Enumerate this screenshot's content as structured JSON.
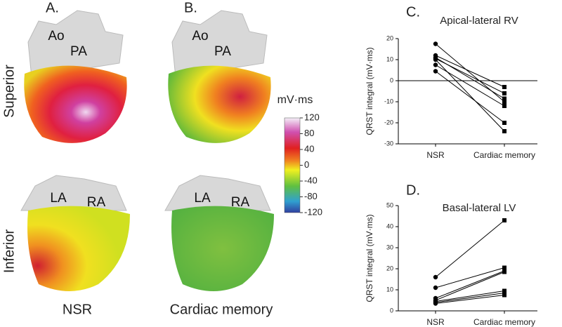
{
  "panel_labels": [
    "A.",
    "B.",
    "C.",
    "D."
  ],
  "view_labels": [
    "Superior",
    "Inferior"
  ],
  "column_labels": [
    "NSR",
    "Cardiac memory"
  ],
  "heart_labels": {
    "superior": [
      "Ao",
      "PA"
    ],
    "inferior": [
      "LA",
      "RA"
    ]
  },
  "colorbar": {
    "title": "mV·ms",
    "range": [
      -120,
      120
    ],
    "ticks": [
      120,
      80,
      40,
      0,
      -40,
      -80,
      -120
    ]
  },
  "chart_data": [
    {
      "type": "line",
      "title": "Apical-lateral RV",
      "y_label": "QRST integral (mV·ms)",
      "categories": [
        "NSR",
        "Cardiac memory"
      ],
      "ylim": [
        -30,
        20
      ],
      "yticks": [
        -30,
        -20,
        -10,
        0,
        10,
        20
      ],
      "zero_line": true,
      "series": [
        {
          "color": "#000000",
          "values": [
            17.5,
            -10
          ]
        },
        {
          "color": "#000000",
          "values": [
            12,
            -3
          ]
        },
        {
          "color": "#000000",
          "values": [
            11,
            -8.5
          ]
        },
        {
          "color": "#000000",
          "values": [
            10.5,
            -6
          ]
        },
        {
          "color": "#000000",
          "values": [
            10,
            -24
          ]
        },
        {
          "color": "#000000",
          "values": [
            7.5,
            -12
          ]
        },
        {
          "color": "#000000",
          "values": [
            4.5,
            -20
          ]
        }
      ]
    },
    {
      "type": "line",
      "title": "Basal-lateral LV",
      "y_label": "QRST integral (mV·ms)",
      "categories": [
        "NSR",
        "Cardiac memory"
      ],
      "ylim": [
        0,
        50
      ],
      "yticks": [
        0,
        10,
        20,
        30,
        40,
        50
      ],
      "zero_line": false,
      "series": [
        {
          "color": "#000000",
          "values": [
            16,
            43
          ]
        },
        {
          "color": "#000000",
          "values": [
            11,
            20.5
          ]
        },
        {
          "color": "#000000",
          "values": [
            6,
            19
          ]
        },
        {
          "color": "#000000",
          "values": [
            5,
            18.5
          ]
        },
        {
          "color": "#000000",
          "values": [
            4.5,
            9.5
          ]
        },
        {
          "color": "#000000",
          "values": [
            4,
            8.5
          ]
        },
        {
          "color": "#000000",
          "values": [
            3.5,
            7.5
          ]
        }
      ]
    }
  ]
}
